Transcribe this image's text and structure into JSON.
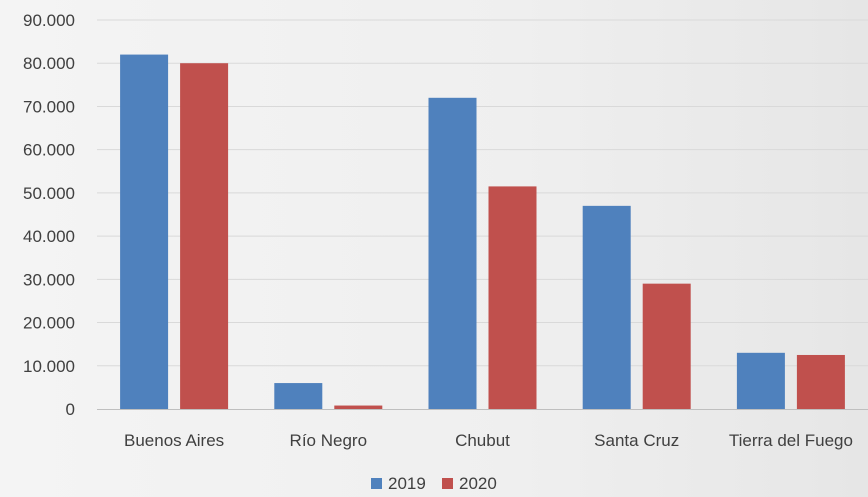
{
  "chart_data": {
    "type": "bar",
    "title": "",
    "xlabel": "",
    "ylabel": "",
    "categories": [
      "Buenos Aires",
      "Río Negro",
      "Chubut",
      "Santa Cruz",
      "Tierra del Fuego"
    ],
    "series": [
      {
        "name": "2019",
        "color": "#4f81bd",
        "values": [
          82000,
          6000,
          72000,
          47000,
          13000
        ]
      },
      {
        "name": "2020",
        "color": "#c0504d",
        "values": [
          80000,
          800,
          51500,
          29000,
          12500
        ]
      }
    ],
    "ylim": [
      0,
      90000
    ],
    "yticks": [
      0,
      10000,
      20000,
      30000,
      40000,
      50000,
      60000,
      70000,
      80000,
      90000
    ],
    "ytick_labels": [
      "0",
      "10.000",
      "20.000",
      "30.000",
      "40.000",
      "50.000",
      "60.000",
      "70.000",
      "80.000",
      "90.000"
    ],
    "grid": true,
    "legend_position": "bottom"
  }
}
